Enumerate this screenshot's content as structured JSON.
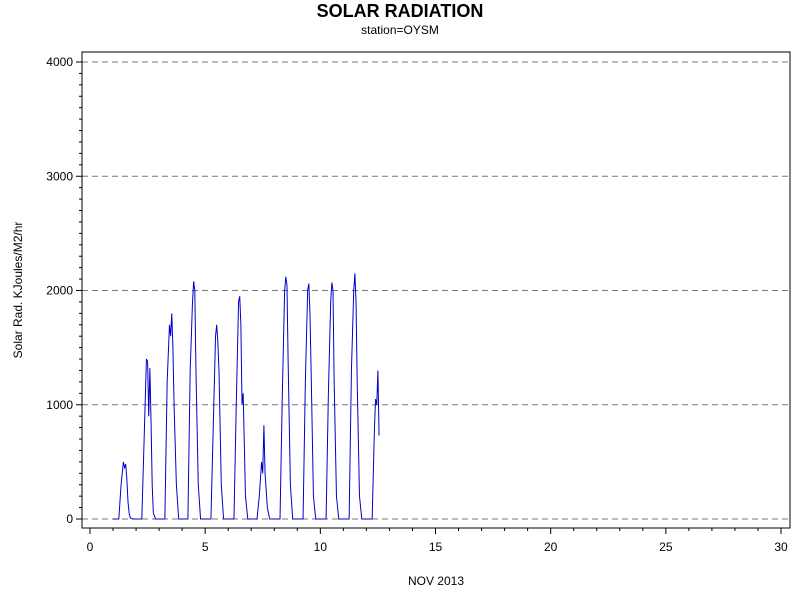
{
  "chart_data": {
    "type": "line",
    "title": "SOLAR RADIATION",
    "subtitle": "station=OYSM",
    "xlabel": "NOV 2013",
    "ylabel": "Solar Rad. KJoules/M2/hr",
    "xlim": [
      0,
      30
    ],
    "ylim": [
      0,
      4000
    ],
    "x_ticks": [
      0,
      5,
      10,
      15,
      20,
      25,
      30
    ],
    "y_ticks": [
      0,
      1000,
      2000,
      3000,
      4000
    ],
    "grid": "horizontal-dashed",
    "line_color": "#0000cc",
    "series": [
      {
        "x": [
          1.0,
          1.25,
          1.35,
          1.45,
          1.5,
          1.55,
          1.6,
          1.65,
          1.7,
          1.75,
          1.85,
          2.0,
          2.25,
          2.35,
          2.45,
          2.5,
          2.55,
          2.6,
          2.65,
          2.7,
          2.75,
          2.85,
          3.0,
          3.25,
          3.35,
          3.45,
          3.5,
          3.55,
          3.6,
          3.65,
          3.75,
          3.85,
          4.0,
          4.25,
          4.35,
          4.45,
          4.5,
          4.55,
          4.6,
          4.7,
          4.8,
          4.9,
          5.0,
          5.25,
          5.35,
          5.45,
          5.5,
          5.55,
          5.6,
          5.7,
          5.8,
          5.9,
          6.0,
          6.25,
          6.35,
          6.45,
          6.5,
          6.55,
          6.6,
          6.65,
          6.75,
          6.85,
          7.0,
          7.25,
          7.35,
          7.45,
          7.5,
          7.55,
          7.6,
          7.7,
          7.8,
          7.9,
          8.0,
          8.25,
          8.35,
          8.45,
          8.5,
          8.55,
          8.6,
          8.7,
          8.8,
          8.9,
          9.0,
          9.25,
          9.35,
          9.45,
          9.5,
          9.55,
          9.6,
          9.7,
          9.8,
          9.9,
          10.0,
          10.25,
          10.35,
          10.45,
          10.5,
          10.55,
          10.6,
          10.7,
          10.8,
          10.9,
          11.0,
          11.25,
          11.35,
          11.45,
          11.5,
          11.55,
          11.6,
          11.7,
          11.8,
          11.9,
          12.0,
          12.25,
          12.35,
          12.4,
          12.45,
          12.5,
          12.55
        ],
        "y": [
          0,
          0,
          300,
          500,
          450,
          480,
          350,
          150,
          50,
          10,
          0,
          0,
          0,
          700,
          1400,
          1380,
          900,
          1320,
          850,
          300,
          50,
          0,
          0,
          0,
          1200,
          1700,
          1600,
          1800,
          1500,
          1000,
          300,
          0,
          0,
          0,
          1300,
          1900,
          2080,
          2000,
          1300,
          300,
          0,
          0,
          0,
          0,
          800,
          1600,
          1700,
          1550,
          1300,
          300,
          0,
          0,
          0,
          0,
          1000,
          1900,
          1950,
          1700,
          1000,
          1100,
          200,
          0,
          0,
          0,
          200,
          500,
          400,
          820,
          400,
          100,
          0,
          0,
          0,
          0,
          1100,
          2000,
          2120,
          2050,
          1400,
          300,
          0,
          0,
          0,
          0,
          1200,
          2000,
          2060,
          1800,
          1300,
          200,
          0,
          0,
          0,
          0,
          1100,
          1900,
          2070,
          2000,
          1200,
          200,
          0,
          0,
          0,
          0,
          1300,
          2000,
          2150,
          1900,
          1200,
          200,
          0,
          0,
          0,
          0,
          800,
          1050,
          1000,
          1300,
          730
        ]
      }
    ]
  }
}
